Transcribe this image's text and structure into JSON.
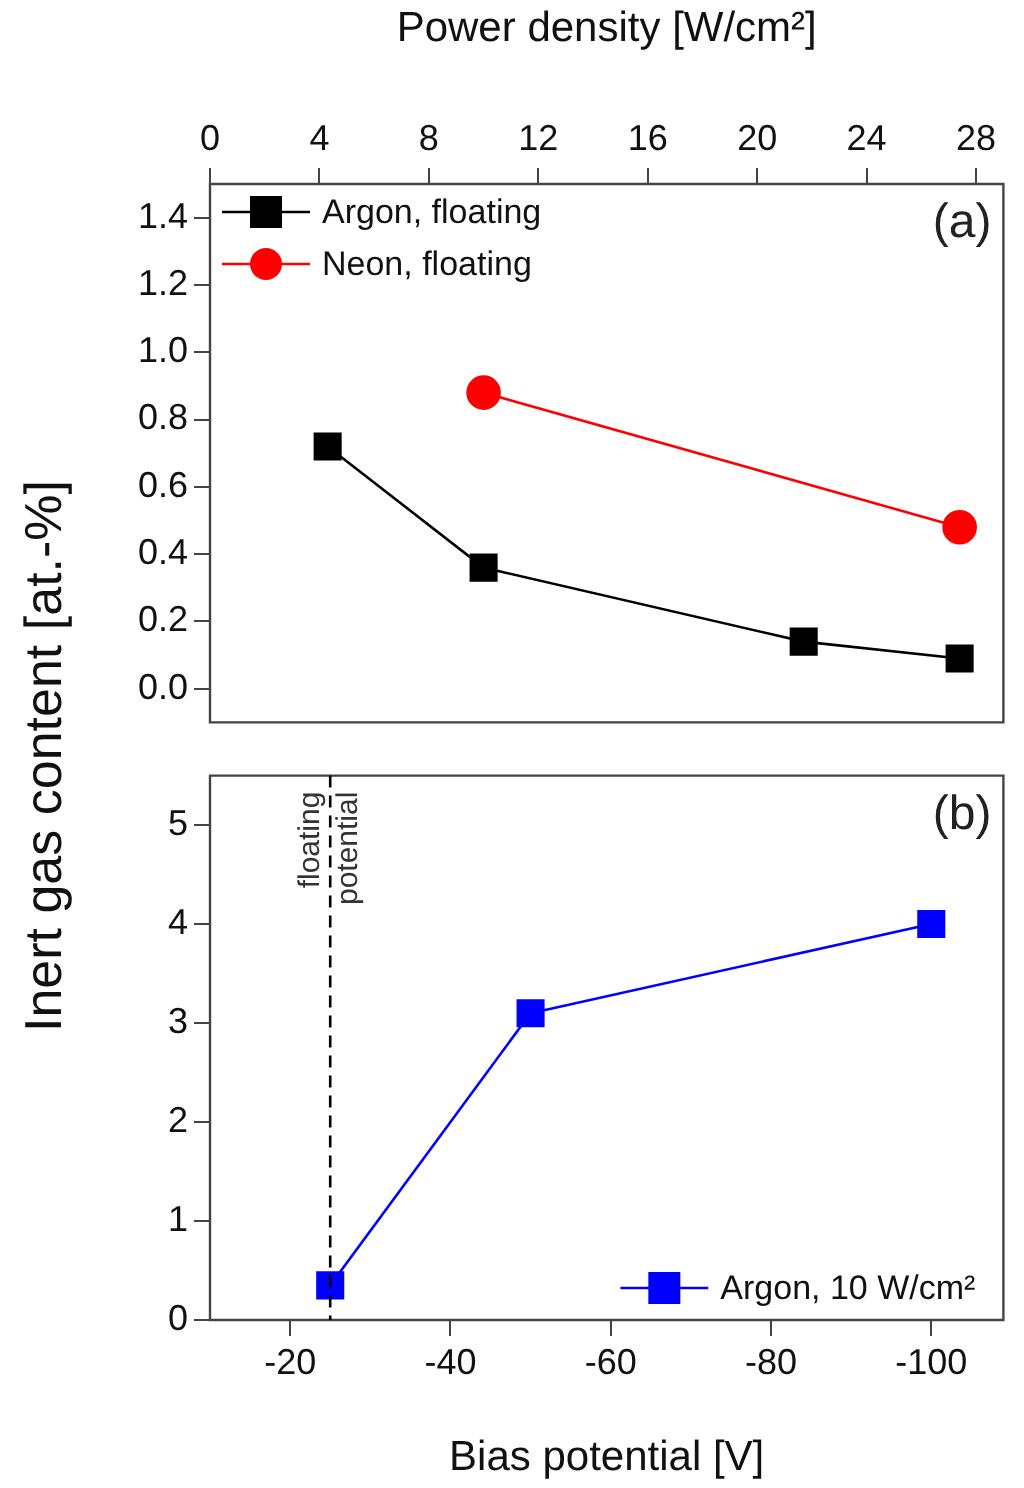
{
  "chart_data": [
    {
      "type": "line",
      "xlabel": "Power density [W/cm²]",
      "ylabel": "Inert gas content [at.-%]",
      "x": [
        4.3,
        10,
        21.7,
        27.4
      ],
      "xlim": [
        0,
        29
      ],
      "xticks": [
        0,
        4,
        8,
        12,
        16,
        20,
        24,
        28
      ],
      "ylim": [
        -0.1,
        1.5
      ],
      "yticks": [
        {
          "value": 0,
          "label": "0.0"
        },
        0.2,
        0.4,
        0.6,
        0.8,
        {
          "value": 1,
          "label": "1.0"
        },
        1.2,
        1.4
      ],
      "grid": false,
      "legend": "top left",
      "annotations": [
        "(a)"
      ],
      "series": [
        {
          "name": "Argon, floating",
          "color": "#000000",
          "marker": "square",
          "values": [
            0.72,
            0.36,
            0.14,
            0.09
          ]
        },
        {
          "name": "Neon, floating",
          "color": "#ff0000",
          "marker": "circle",
          "x": [
            10,
            27.4
          ],
          "values": [
            0.88,
            0.48
          ]
        }
      ]
    },
    {
      "type": "line",
      "xlabel": "Bias potential [V]",
      "x": [
        -25,
        -50,
        -100
      ],
      "xlim": [
        -10,
        -109
      ],
      "xticks": [
        -20,
        -40,
        -60,
        -80,
        -100
      ],
      "ylim": [
        0,
        5.5
      ],
      "yticks": [
        0,
        1,
        2,
        3,
        4,
        5
      ],
      "grid": false,
      "legend": "bottom right",
      "annotations": [
        "(b)"
      ],
      "ref_lines": [
        {
          "axis": "x",
          "value": -25,
          "label": "floating potential",
          "line_style": "dashed",
          "color": "#000000"
        }
      ],
      "series": [
        {
          "name": "Argon, 10 W/cm²",
          "color": "#0000ff",
          "marker": "square",
          "values": [
            0.35,
            3.1,
            4.0
          ]
        }
      ]
    }
  ]
}
